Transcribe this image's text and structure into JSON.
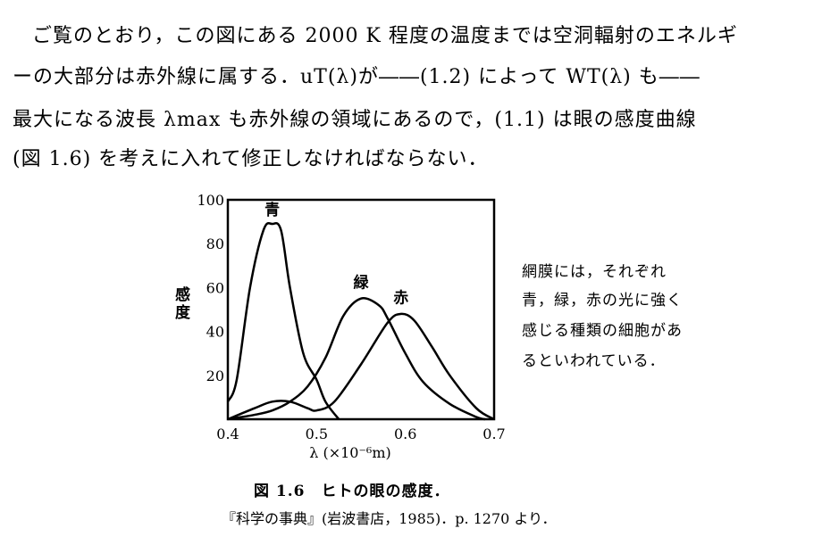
{
  "paragraph": {
    "lines": [
      "ご覧のとおり，この図にある 2000 K 程度の温度までは空洞輻射のエネルギ",
      "ーの大部分は赤外線に属する．uT(λ)が――(1.2) によって WT(λ) も――",
      "最大になる波長 λmax も赤外線の領域にあるので，(1.1) は眼の感度曲線",
      "(図 1.6) を考えに入れて修正しなければならない．"
    ]
  },
  "side_note": {
    "lines": [
      "網膜には，それぞれ",
      "青，緑，赤の光に強く",
      "感じる種類の細胞があ",
      "るといわれている．"
    ]
  },
  "figure": {
    "caption": "図 1.6　ヒトの眼の感度．",
    "source": "『科学の事典』(岩波書店，1985)．p. 1270 より．"
  },
  "chart_data": {
    "type": "line",
    "title": "",
    "xlabel": "λ (×10⁻⁶m)",
    "ylabel": "感度",
    "xlim": [
      0.4,
      0.7
    ],
    "ylim": [
      0,
      100
    ],
    "xticks": [
      "0.4",
      "0.5",
      "0.6",
      "0.7"
    ],
    "yticks": [
      "20",
      "40",
      "60",
      "80",
      "100"
    ],
    "grid": false,
    "series": [
      {
        "name": "青",
        "x": [
          0.4,
          0.41,
          0.425,
          0.44,
          0.45,
          0.46,
          0.47,
          0.485,
          0.5,
          0.51,
          0.525
        ],
        "y": [
          8,
          18,
          60,
          86,
          89,
          86,
          60,
          30,
          18,
          8,
          0
        ]
      },
      {
        "name": "緑",
        "x": [
          0.4,
          0.43,
          0.45,
          0.47,
          0.49,
          0.51,
          0.53,
          0.55,
          0.57,
          0.58,
          0.6,
          0.62,
          0.65,
          0.68,
          0.69
        ],
        "y": [
          0,
          2,
          4,
          8,
          15,
          28,
          47,
          55,
          52,
          46,
          30,
          17,
          7,
          1,
          0
        ]
      },
      {
        "name": "赤",
        "x": [
          0.4,
          0.43,
          0.45,
          0.47,
          0.49,
          0.5,
          0.52,
          0.55,
          0.58,
          0.595,
          0.61,
          0.63,
          0.65,
          0.68,
          0.7
        ],
        "y": [
          0,
          5,
          8,
          8,
          5,
          4,
          8,
          25,
          44,
          48,
          45,
          33,
          20,
          5,
          0
        ]
      }
    ]
  }
}
